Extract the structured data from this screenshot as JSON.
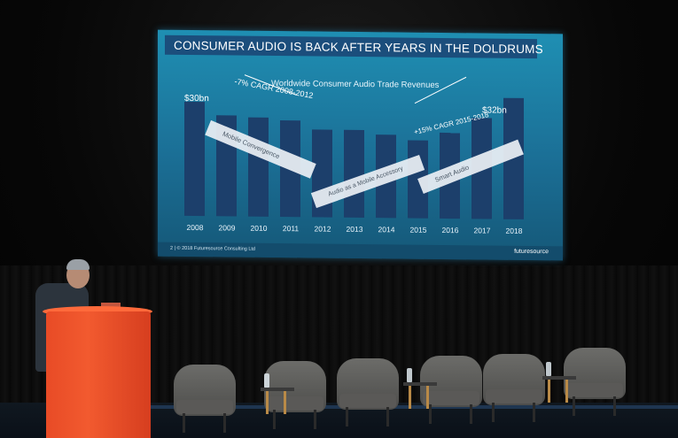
{
  "slide": {
    "title": "CONSUMER AUDIO IS BACK AFTER YEARS IN THE DOLDRUMS",
    "subtitle": "Worldwide Consumer Audio Trade Revenues",
    "start_value": "$30bn",
    "end_value": "$32bn",
    "cagr_decline": "-7% CAGR 2008-2012",
    "cagr_growth": "+15% CAGR 2015-2018",
    "band_mobile": "Mobile Convergence",
    "band_accessory": "Audio as a Mobile Accessory",
    "band_smart": "Smart Audio",
    "footer": "2 | © 2018 Futuresource Consulting Ltd",
    "logo": "futuresource"
  },
  "chart_data": {
    "type": "bar",
    "categories": [
      "2008",
      "2009",
      "2010",
      "2011",
      "2012",
      "2013",
      "2014",
      "2015",
      "2016",
      "2017",
      "2018"
    ],
    "values": [
      30,
      26.5,
      26,
      25.5,
      23,
      23,
      22,
      20.5,
      22.5,
      26.5,
      32
    ],
    "title": "Worldwide Consumer Audio Trade Revenues",
    "xlabel": "",
    "ylabel": "",
    "ylim": [
      0,
      34
    ]
  },
  "colors": {
    "screen": "#1f8fb3",
    "bar": "#1c3f6b",
    "banner": "#1b4e7c",
    "podium": "#f25a2f"
  }
}
